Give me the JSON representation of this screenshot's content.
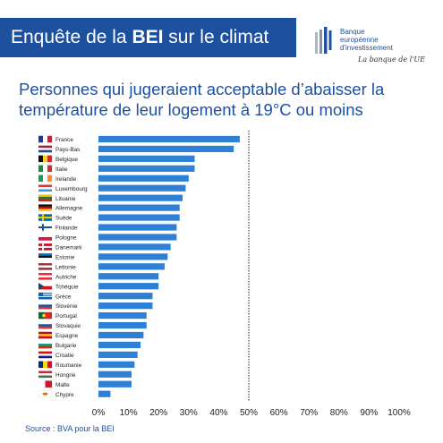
{
  "banner": {
    "prefix": "Enquête de la ",
    "bold": "BEI",
    "suffix": " sur le climat"
  },
  "logo": {
    "name_line1": "Banque",
    "name_line2": "européenne",
    "name_line3": "d'investissement",
    "tagline": "La banque de l'UE",
    "color": "#1e50a0"
  },
  "chart_data": {
    "type": "bar",
    "orientation": "horizontal",
    "title": "Personnes qui jugeraient acceptable d’abaisser la température de leur logement à 19°C ou moins",
    "categories": [
      "France",
      "Pays-Bas",
      "Belgique",
      "Italie",
      "Irelande",
      "Luxembourg",
      "Lituanie",
      "Allemagne",
      "Suède",
      "Finlande",
      "Pologne",
      "Danemark",
      "Estonie",
      "Lettonie",
      "Autriche",
      "Tchéquie",
      "Grèce",
      "Slovénie",
      "Portugal",
      "Slovaquie",
      "Espagne",
      "Bulgarie",
      "Croatie",
      "Roumanie",
      "Hongrie",
      "Malte",
      "Chypre"
    ],
    "values": [
      47,
      45,
      32,
      32,
      30,
      29,
      28,
      27,
      27,
      26,
      26,
      24,
      23,
      22,
      20,
      20,
      18,
      18,
      16,
      16,
      15,
      14,
      13,
      12,
      11,
      11,
      4
    ],
    "xlim": [
      0,
      100
    ],
    "xticks": [
      "0%",
      "10%",
      "20%",
      "30%",
      "40%",
      "50%",
      "60%",
      "70%",
      "80%",
      "90%",
      "100%"
    ],
    "reference_line": 50,
    "bar_color": "#2e7fd6",
    "reference_line_color": "#222222"
  },
  "source": "Source : BVA pour la BEI"
}
